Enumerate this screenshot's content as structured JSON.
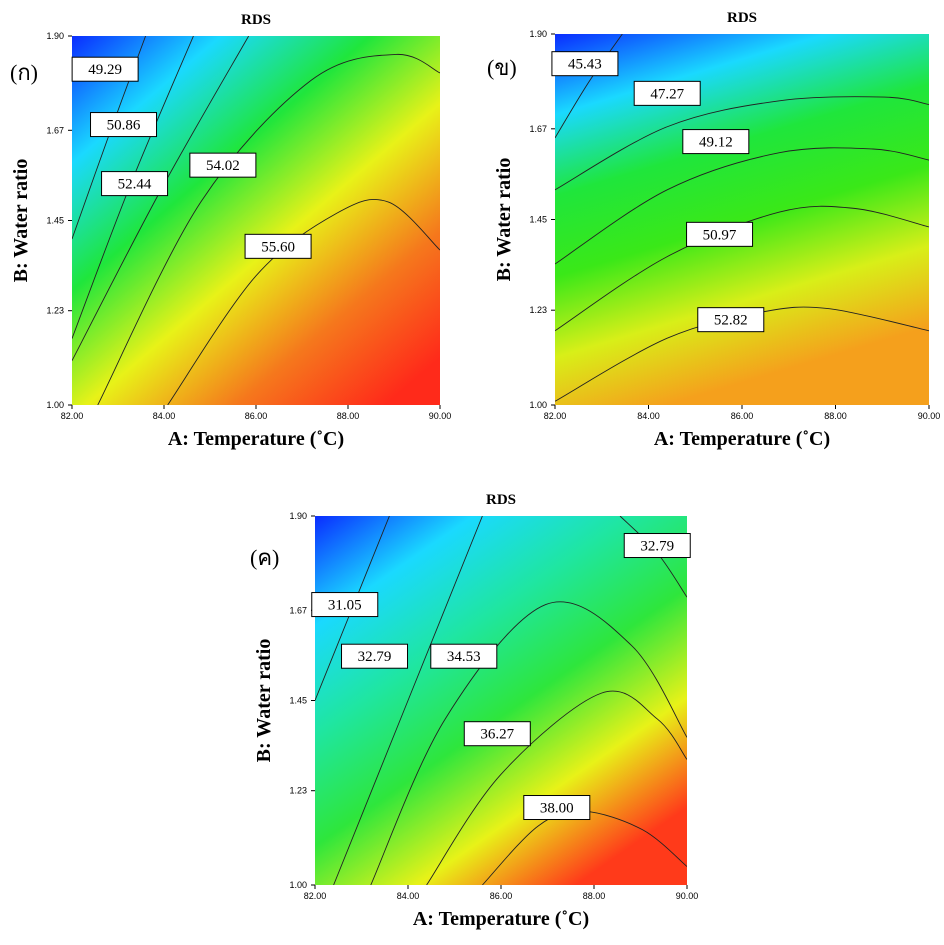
{
  "chart_data": [
    {
      "type": "contour",
      "title": "RDS",
      "panel_label": "(ก)",
      "x_label": "A: Temperature (˚C)",
      "y_label": "B: Water ratio",
      "xlim": [
        82,
        90
      ],
      "xticks": [
        {
          "value": 82,
          "label": "82.00"
        },
        {
          "value": 84,
          "label": "84.00"
        },
        {
          "value": 86,
          "label": "86.00"
        },
        {
          "value": 88,
          "label": "88.00"
        },
        {
          "value": 90,
          "label": "90.00"
        }
      ],
      "ylim": [
        1,
        1.9
      ],
      "yticks": [
        {
          "value": 1,
          "label": "1.00"
        },
        1.23,
        1.45,
        1.67,
        {
          "value": 1.9,
          "label": "1.90"
        }
      ],
      "levels": [
        49.29,
        50.86,
        52.44,
        54.02,
        55.6
      ],
      "value_labels": [
        "49.29",
        "50.86",
        "52.44",
        "54.02",
        "55.60"
      ],
      "colormap": [
        "#0a2cff",
        "#1ad9ff",
        "#1fe63c",
        "#e8f218",
        "#f5781c",
        "#ff2a1a"
      ],
      "grid": false
    },
    {
      "type": "contour",
      "title": "RDS",
      "panel_label": "(ข)",
      "x_label": "A: Temperature (˚C)",
      "y_label": "B: Water ratio",
      "xlim": [
        82,
        90
      ],
      "xticks": [
        {
          "value": 82,
          "label": "82.00"
        },
        {
          "value": 84,
          "label": "84.00"
        },
        {
          "value": 86,
          "label": "86.00"
        },
        {
          "value": 88,
          "label": "88.00"
        },
        {
          "value": 90,
          "label": "90.00"
        }
      ],
      "ylim": [
        1,
        1.9
      ],
      "yticks": [
        {
          "value": 1,
          "label": "1.00"
        },
        1.23,
        1.45,
        1.67,
        {
          "value": 1.9,
          "label": "1.90"
        }
      ],
      "levels": [
        45.43,
        47.27,
        49.12,
        50.97,
        52.82
      ],
      "value_labels": [
        "45.43",
        "47.27",
        "49.12",
        "50.97",
        "52.82"
      ],
      "colormap": [
        "#0a2cff",
        "#1ad9ff",
        "#1fe63c",
        "#3ae818",
        "#d8ef18",
        "#f5a01c"
      ],
      "grid": false
    },
    {
      "type": "contour",
      "title": "RDS",
      "panel_label": "(ค)",
      "x_label": "A: Temperature (˚C)",
      "y_label": "B: Water ratio",
      "xlim": [
        82,
        90
      ],
      "xticks": [
        {
          "value": 82,
          "label": "82.00"
        },
        {
          "value": 84,
          "label": "84.00"
        },
        {
          "value": 86,
          "label": "86.00"
        },
        {
          "value": 88,
          "label": "88.00"
        },
        {
          "value": 90,
          "label": "90.00"
        }
      ],
      "ylim": [
        1,
        1.9
      ],
      "yticks": [
        {
          "value": 1,
          "label": "1.00"
        },
        1.23,
        1.45,
        1.67,
        {
          "value": 1.9,
          "label": "1.90"
        }
      ],
      "levels": [
        32.79,
        31.05,
        32.79,
        34.53,
        36.27,
        38
      ],
      "value_labels": [
        "32.79",
        "31.05",
        "32.79",
        "34.53",
        "36.27",
        "38.00"
      ],
      "colormap": [
        "#0a2cff",
        "#1ad9ff",
        "#1fe6a0",
        "#2ee63c",
        "#e8f218",
        "#ff3a1a"
      ],
      "grid": false
    }
  ]
}
